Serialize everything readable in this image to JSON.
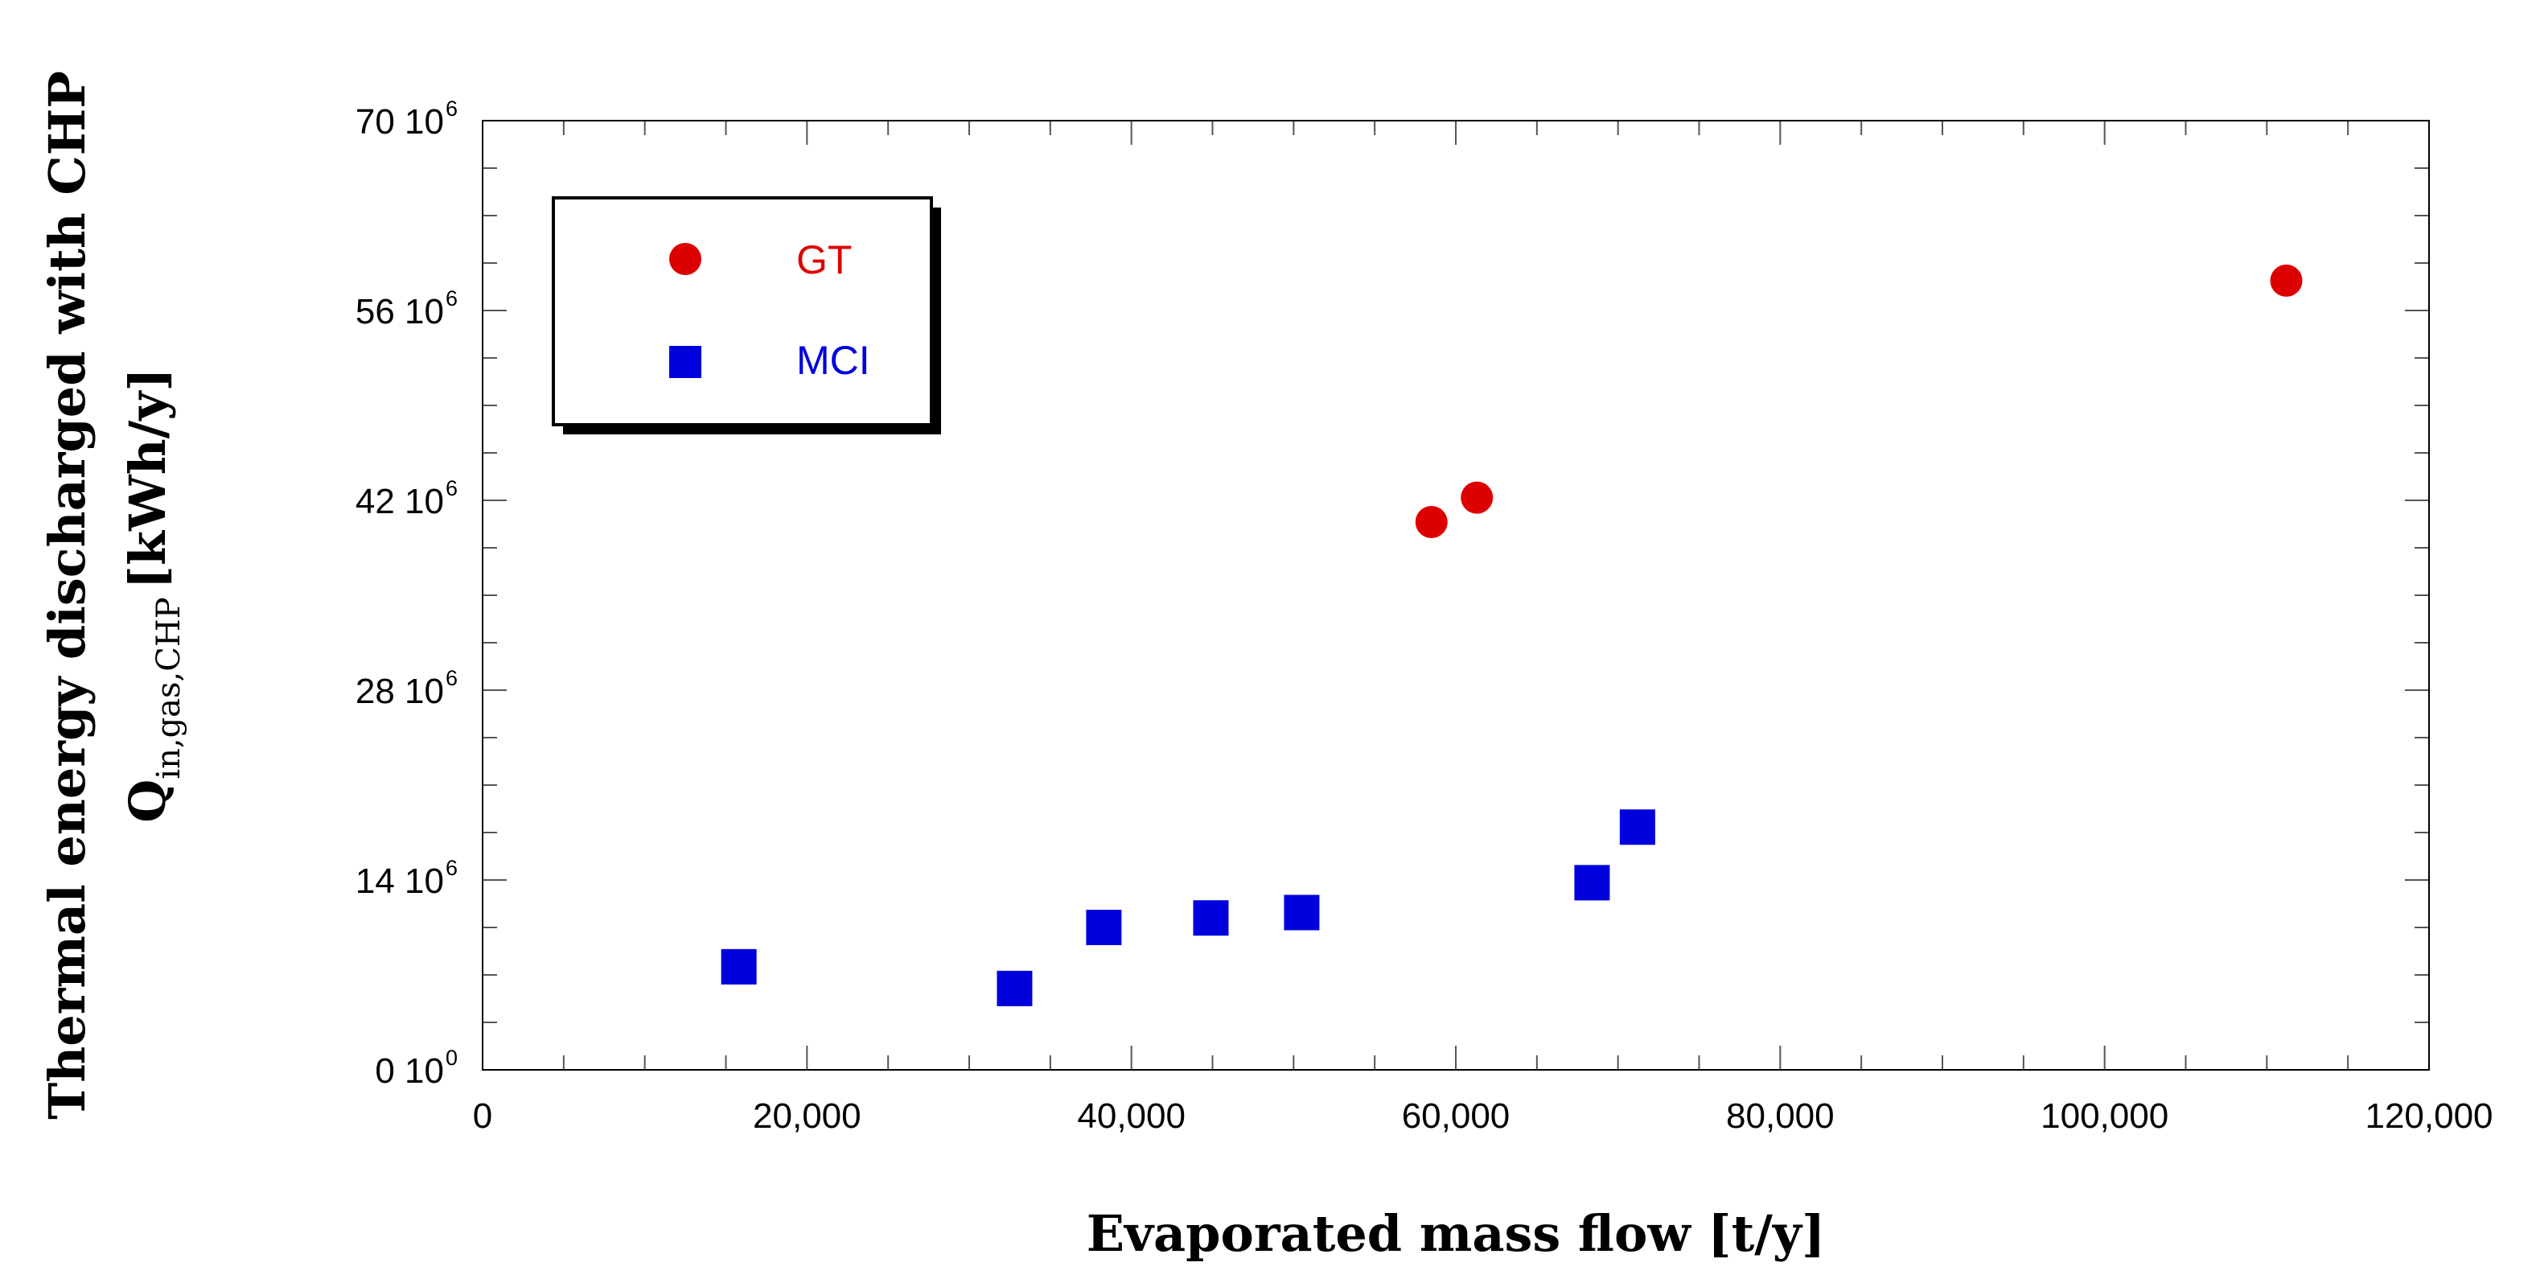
{
  "chart_data": {
    "type": "scatter",
    "title": "",
    "xlabel": "Evaporated mass flow [t/y]",
    "ylabel_line1": "Thermal energy discharged with CHP",
    "ylabel_line2_symbol": "Q",
    "ylabel_line2_subscript": "in,gas,CHP",
    "ylabel_line2_unit": "[kWh/y]",
    "xlim": [
      0,
      120000
    ],
    "ylim": [
      0,
      70000000
    ],
    "x_ticks": [
      {
        "value": 0,
        "label": "0"
      },
      {
        "value": 20000,
        "label": "20,000"
      },
      {
        "value": 40000,
        "label": "40,000"
      },
      {
        "value": 60000,
        "label": "60,000"
      },
      {
        "value": 80000,
        "label": "80,000"
      },
      {
        "value": 100000,
        "label": "100,000"
      },
      {
        "value": 120000,
        "label": "120,000"
      }
    ],
    "y_ticks": [
      {
        "value": 0,
        "mantissa": "0 10",
        "exponent": "0"
      },
      {
        "value": 14000000,
        "mantissa": "14 10",
        "exponent": "6"
      },
      {
        "value": 28000000,
        "mantissa": "28 10",
        "exponent": "6"
      },
      {
        "value": 42000000,
        "mantissa": "42 10",
        "exponent": "6"
      },
      {
        "value": 56000000,
        "mantissa": "56 10",
        "exponent": "6"
      },
      {
        "value": 70000000,
        "mantissa": "70 10",
        "exponent": "6"
      }
    ],
    "series": [
      {
        "name": "GT",
        "marker": "circle",
        "color": "#dd0000",
        "points": [
          {
            "x": 58500,
            "y": 40400000
          },
          {
            "x": 61300,
            "y": 42200000
          },
          {
            "x": 111200,
            "y": 58200000
          }
        ]
      },
      {
        "name": "MCI",
        "marker": "square",
        "color": "#0000dd",
        "points": [
          {
            "x": 15800,
            "y": 7600000
          },
          {
            "x": 32800,
            "y": 6000000
          },
          {
            "x": 38300,
            "y": 10500000
          },
          {
            "x": 44900,
            "y": 11200000
          },
          {
            "x": 50500,
            "y": 11600000
          },
          {
            "x": 68400,
            "y": 13800000
          },
          {
            "x": 71200,
            "y": 17900000
          }
        ]
      }
    ],
    "legend": {
      "position": "top-left",
      "shadow": true
    },
    "grid": false
  }
}
